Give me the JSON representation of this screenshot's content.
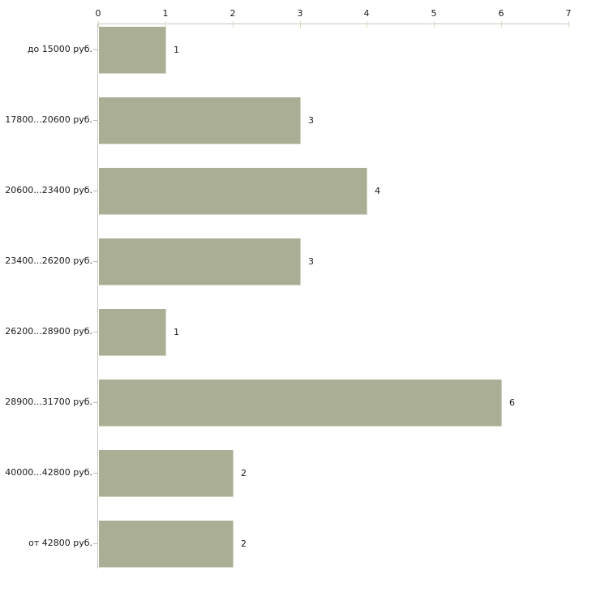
{
  "chart_data": {
    "type": "bar",
    "orientation": "horizontal",
    "title": "",
    "xlabel": "",
    "ylabel": "",
    "categories": [
      "до 15000 руб.",
      "17800...20600 руб.",
      "20600...23400 руб.",
      "23400...26200 руб.",
      "26200...28900 руб.",
      "28900...31700 руб.",
      "40000...42800 руб.",
      "от 42800 руб."
    ],
    "values": [
      1,
      3,
      4,
      3,
      1,
      6,
      2,
      2
    ],
    "value_labels": [
      "1",
      "3",
      "4",
      "3",
      "1",
      "6",
      "2",
      "2"
    ],
    "x_ticks": [
      "0",
      "1",
      "2",
      "3",
      "4",
      "5",
      "6",
      "7"
    ],
    "xlim": [
      0,
      7
    ],
    "grid": false,
    "legend": false,
    "colors": {
      "background": "#ffffff",
      "bar_fill": "#a9ae94",
      "bar_border": "#d2d5c4",
      "axis_line": "#c7c7c3",
      "x_tick_mark": "#d8d8bc",
      "category_tick_mark": "#b9bbae",
      "text": "#1a1a1a"
    }
  }
}
